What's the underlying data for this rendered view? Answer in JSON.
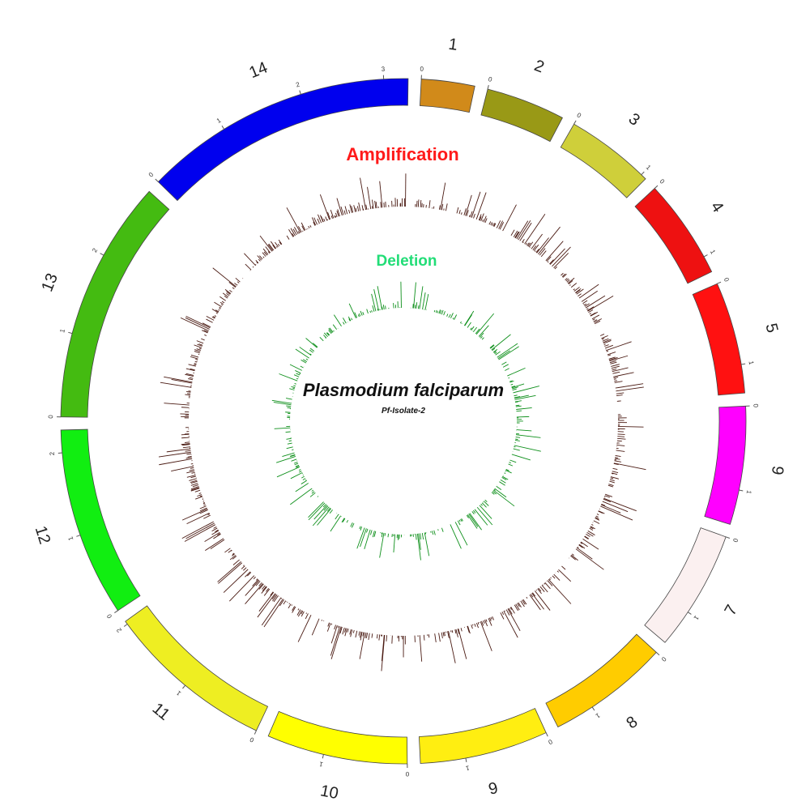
{
  "title": "Plasmodium falciparum",
  "subtitle": "Pf-Isolate-2",
  "tracks": {
    "amplification": {
      "label": "Amplification",
      "color": "#ff1a1a",
      "bar_color": "#4a1a12"
    },
    "deletion": {
      "label": "Deletion",
      "color": "#22dd77",
      "bar_color": "#0d8f1a"
    }
  },
  "chromosomes": [
    {
      "id": "1",
      "label": "1",
      "color": "#d18a1a",
      "size_mb": 0.64,
      "ticks": [
        "0"
      ]
    },
    {
      "id": "2",
      "label": "2",
      "color": "#999916",
      "size_mb": 0.95,
      "ticks": [
        "0"
      ]
    },
    {
      "id": "3",
      "label": "3",
      "color": "#cfcf3a",
      "size_mb": 1.07,
      "ticks": [
        "0",
        "1"
      ]
    },
    {
      "id": "4",
      "label": "4",
      "color": "#ee1111",
      "size_mb": 1.2,
      "ticks": [
        "0",
        "1"
      ]
    },
    {
      "id": "5",
      "label": "5",
      "color": "#ff1111",
      "size_mb": 1.34,
      "ticks": [
        "0",
        "1"
      ]
    },
    {
      "id": "6",
      "label": "6",
      "color": "#ff00ff",
      "size_mb": 1.42,
      "ticks": [
        "0",
        "1"
      ]
    },
    {
      "id": "7",
      "label": "7",
      "color": "#fbf0f0",
      "size_mb": 1.45,
      "ticks": [
        "0",
        "1"
      ]
    },
    {
      "id": "8",
      "label": "8",
      "color": "#ffcc00",
      "size_mb": 1.47,
      "ticks": [
        "0",
        "1"
      ]
    },
    {
      "id": "9",
      "label": "9",
      "color": "#ffee11",
      "size_mb": 1.54,
      "ticks": [
        "0",
        "1"
      ]
    },
    {
      "id": "10",
      "label": "10",
      "color": "#ffff00",
      "size_mb": 1.69,
      "ticks": [
        "0",
        "1"
      ]
    },
    {
      "id": "11",
      "label": "11",
      "color": "#eeee22",
      "size_mb": 2.04,
      "ticks": [
        "0",
        "1",
        "2"
      ]
    },
    {
      "id": "12",
      "label": "12",
      "color": "#11ee11",
      "size_mb": 2.27,
      "ticks": [
        "0",
        "1",
        "2"
      ]
    },
    {
      "id": "13",
      "label": "13",
      "color": "#44bb11",
      "size_mb": 2.93,
      "ticks": [
        "0",
        "1",
        "2"
      ]
    },
    {
      "id": "14",
      "label": "14",
      "color": "#0000ee",
      "size_mb": 3.29,
      "ticks": [
        "0",
        "1",
        "2",
        "3"
      ]
    }
  ]
}
